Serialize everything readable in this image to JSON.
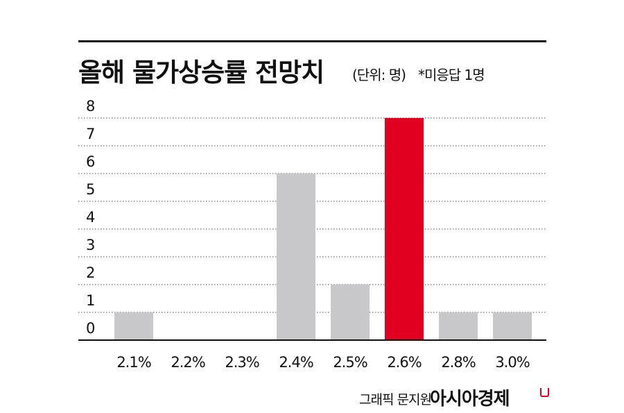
{
  "header": {
    "title": "올해 물가상승률 전망치",
    "unit": "(단위: 명)",
    "note": "*미응답 1명"
  },
  "footer": {
    "credit": "그래픽 문지원",
    "brand": "아시아경제"
  },
  "colors": {
    "bar": "#c8c8ca",
    "highlight": "#e1001f",
    "grid": "#555555",
    "axis": "#111111"
  },
  "chart_data": {
    "type": "bar",
    "title": "올해 물가상승률 전망치",
    "xlabel": "",
    "ylabel": "",
    "categories": [
      "2.1%",
      "2.2%",
      "2.3%",
      "2.4%",
      "2.5%",
      "2.6%",
      "2.8%",
      "3.0%"
    ],
    "values": [
      1,
      0,
      0,
      6,
      2,
      8,
      1,
      1
    ],
    "highlight_category": "2.6%",
    "yticks": [
      "0",
      "1",
      "2",
      "3",
      "4",
      "5",
      "6",
      "7",
      "8"
    ],
    "ylim": [
      -1,
      8
    ],
    "grid": true,
    "grid_style": "dotted"
  }
}
